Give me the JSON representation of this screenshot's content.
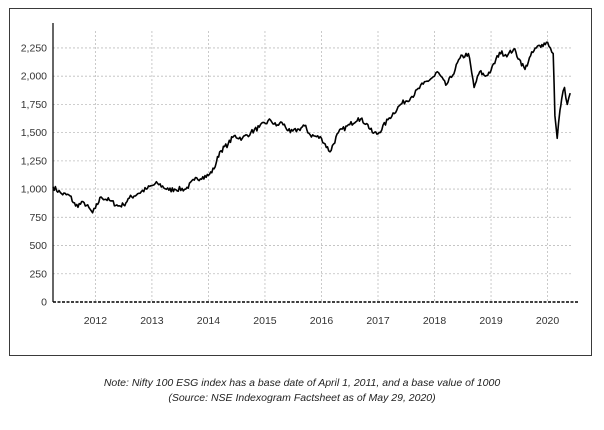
{
  "chart_data": {
    "type": "line",
    "title": "",
    "xlabel": "",
    "ylabel": "",
    "xlim": [
      2011.25,
      2020.45
    ],
    "ylim": [
      0,
      2400
    ],
    "grid": true,
    "legend": "none",
    "x_ticks": [
      {
        "value": 2012,
        "label": "2012"
      },
      {
        "value": 2013,
        "label": "2013"
      },
      {
        "value": 2014,
        "label": "2014"
      },
      {
        "value": 2015,
        "label": "2015"
      },
      {
        "value": 2016,
        "label": "2016"
      },
      {
        "value": 2017,
        "label": "2017"
      },
      {
        "value": 2018,
        "label": "2018"
      },
      {
        "value": 2019,
        "label": "2019"
      },
      {
        "value": 2020,
        "label": "2020"
      }
    ],
    "y_ticks": [
      {
        "value": 0,
        "label": "0"
      },
      {
        "value": 250,
        "label": "250"
      },
      {
        "value": 500,
        "label": "500"
      },
      {
        "value": 750,
        "label": "750"
      },
      {
        "value": 1000,
        "label": "1,000"
      },
      {
        "value": 1250,
        "label": "1,250"
      },
      {
        "value": 1500,
        "label": "1,500"
      },
      {
        "value": 1750,
        "label": "1,750"
      },
      {
        "value": 2000,
        "label": "2,000"
      },
      {
        "value": 2250,
        "label": "2,250"
      }
    ],
    "series": [
      {
        "color": "#000000",
        "x": [
          2011.25,
          2011.4,
          2011.55,
          2011.65,
          2011.8,
          2011.95,
          2012.0,
          2012.1,
          2012.25,
          2012.4,
          2012.5,
          2012.6,
          2012.75,
          2012.9,
          2013.0,
          2013.1,
          2013.3,
          2013.4,
          2013.6,
          2013.75,
          2013.9,
          2014.0,
          2014.1,
          2014.2,
          2014.35,
          2014.45,
          2014.6,
          2014.75,
          2014.9,
          2015.1,
          2015.2,
          2015.3,
          2015.45,
          2015.6,
          2015.7,
          2015.8,
          2016.0,
          2016.15,
          2016.3,
          2016.5,
          2016.65,
          2016.8,
          2016.9,
          2017.0,
          2017.2,
          2017.4,
          2017.6,
          2017.8,
          2018.0,
          2018.05,
          2018.2,
          2018.3,
          2018.45,
          2018.6,
          2018.7,
          2018.8,
          2018.9,
          2019.0,
          2019.15,
          2019.3,
          2019.4,
          2019.5,
          2019.6,
          2019.7,
          2019.8,
          2019.9,
          2020.0,
          2020.05,
          2020.1,
          2020.13,
          2020.17,
          2020.22,
          2020.25,
          2020.3,
          2020.35,
          2020.4
        ],
        "y": [
          1020,
          960,
          940,
          850,
          880,
          790,
          830,
          930,
          900,
          850,
          860,
          920,
          960,
          1000,
          1030,
          1050,
          990,
          1000,
          1000,
          1080,
          1110,
          1120,
          1180,
          1330,
          1400,
          1470,
          1450,
          1500,
          1550,
          1610,
          1560,
          1590,
          1500,
          1530,
          1560,
          1480,
          1450,
          1330,
          1500,
          1570,
          1630,
          1580,
          1500,
          1490,
          1630,
          1750,
          1820,
          1930,
          2000,
          2040,
          1920,
          1990,
          2160,
          2200,
          1900,
          2040,
          2000,
          2050,
          2210,
          2190,
          2240,
          2150,
          2060,
          2180,
          2250,
          2280,
          2300,
          2250,
          2200,
          1650,
          1450,
          1700,
          1800,
          1900,
          1750,
          1850
        ]
      }
    ]
  },
  "caption": {
    "line1": "Note: Nifty 100 ESG index has a base date of April 1, 2011, and a base value of 1000",
    "line2": "(Source: NSE Indexogram Factsheet as of May 29, 2020)"
  }
}
